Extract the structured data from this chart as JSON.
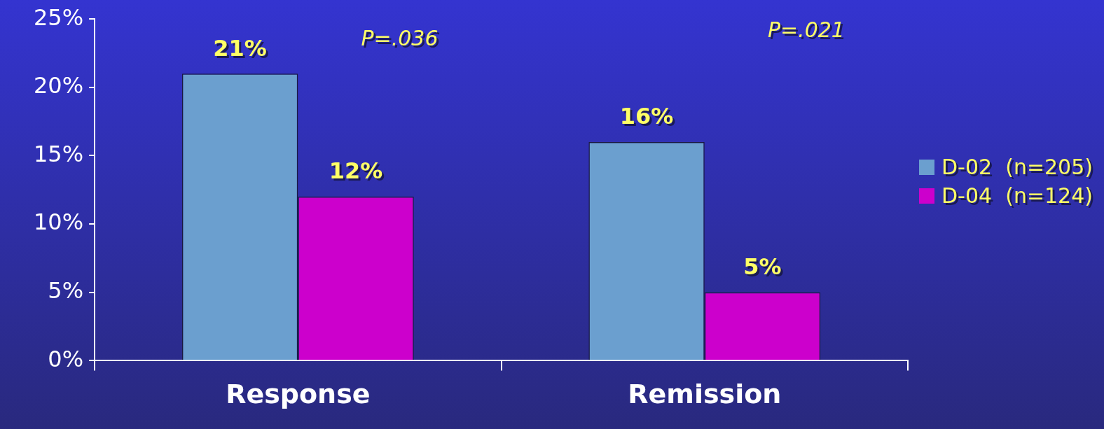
{
  "chart_data": {
    "type": "bar",
    "categories": [
      "Response",
      "Remission"
    ],
    "series": [
      {
        "name": "D-02  (n=205)",
        "color": "#6b9fcf",
        "values": [
          21,
          16
        ],
        "value_labels": [
          "21%",
          "16%"
        ]
      },
      {
        "name": "D-04  (n=124)",
        "color": "#cc00cc",
        "values": [
          12,
          5
        ],
        "value_labels": [
          "12%",
          "5%"
        ]
      }
    ],
    "ylim": [
      0,
      25
    ],
    "yticks": [
      {
        "value": 0,
        "label": "0%"
      },
      {
        "value": 5,
        "label": "5%"
      },
      {
        "value": 10,
        "label": "10%"
      },
      {
        "value": 15,
        "label": "15%"
      },
      {
        "value": 20,
        "label": "20%"
      },
      {
        "value": 25,
        "label": "25%"
      }
    ],
    "annotations": [
      "P=.036",
      "P=.021"
    ],
    "grid": false,
    "legend": "right"
  }
}
